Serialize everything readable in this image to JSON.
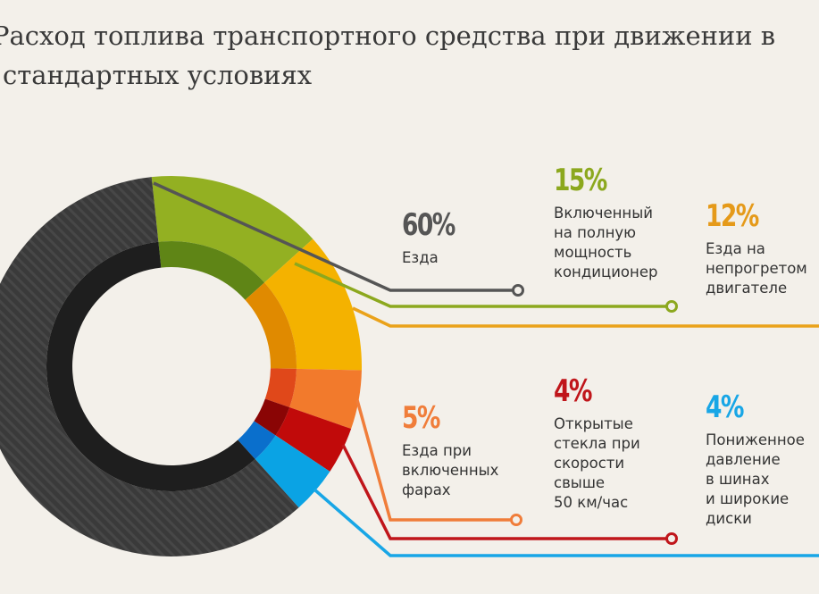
{
  "title_lines": [
    "Расход топлива транспортного средства при движении в",
    "стандартных условиях"
  ],
  "chart_data": {
    "type": "pie",
    "variant": "donut",
    "title": "Расход топлива транспортного средства при движении в стандартных условиях",
    "slices": [
      {
        "label": "Включенный на полную мощность кондиционер",
        "value": 15,
        "pct_label": "15%",
        "color": "#93b022",
        "inner_color": "#5f8516"
      },
      {
        "label": "Езда на непрогретом двигателе",
        "value": 12,
        "pct_label": "12%",
        "color": "#f4b200",
        "inner_color": "#e08a00"
      },
      {
        "label": "Езда при включенных фарах",
        "value": 5,
        "pct_label": "5%",
        "color": "#f27a2c",
        "inner_color": "#e0481a"
      },
      {
        "label": "Открытые стекла при скорости свыше 50 км/час",
        "value": 4,
        "pct_label": "4%",
        "color": "#c10a0a",
        "inner_color": "#8a0505"
      },
      {
        "label": "Пониженное давление в шинах и широкие диски",
        "value": 4,
        "pct_label": "4%",
        "color": "#0aa3e4",
        "inner_color": "#0a6fcc"
      },
      {
        "label": "Езда",
        "value": 60,
        "pct_label": "60%",
        "color": "#3a3a3a",
        "inner_color": "#1e1e1e"
      }
    ],
    "labels": [
      {
        "pct": "60%",
        "text": "Езда",
        "color": "#555555"
      },
      {
        "pct": "15%",
        "text": "Включенный\nна полную\nмощность\nкондиционер",
        "color": "#8ca81e"
      },
      {
        "pct": "12%",
        "text": "Езда на\nнепрогретом\nдвигателе",
        "color": "#e59a1a"
      },
      {
        "pct": "5%",
        "text": "Езда при\nвключенных\nфарах",
        "color": "#f07d3a"
      },
      {
        "pct": "4%",
        "text": "Открытые\nстекла при\nскорости\nсвыше\n50 км/час",
        "color": "#c0161b"
      },
      {
        "pct": "4%",
        "text": "Пониженное\nдавление\nв шинах\nи широкие\nдиски",
        "color": "#18a6e6"
      }
    ]
  }
}
